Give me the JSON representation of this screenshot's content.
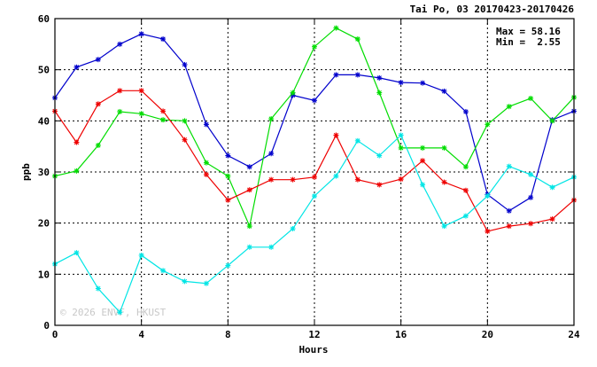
{
  "chart_data": {
    "type": "line",
    "title": "Tai Po, 03 20170423-20170426",
    "xlabel": "Hours",
    "ylabel": "ppb",
    "xlim": [
      0,
      24
    ],
    "ylim": [
      0,
      60
    ],
    "xticks": [
      0,
      4,
      8,
      12,
      16,
      20,
      24
    ],
    "yticks": [
      0,
      10,
      20,
      30,
      40,
      50,
      60
    ],
    "grid": true,
    "stats": {
      "max_label": "Max = 58.16",
      "min_label": "Min =  2.55"
    },
    "watermark": "© 2026 ENVF, HKUST",
    "series": [
      {
        "color": "#0000cc",
        "x": [
          0,
          1,
          2,
          3,
          4,
          5,
          6,
          7,
          8,
          9,
          10,
          11,
          12,
          13,
          14,
          15,
          16,
          17,
          18,
          19,
          20,
          21,
          22,
          23,
          24
        ],
        "y": [
          44.5,
          50.5,
          52.0,
          55.0,
          57.0,
          56.0,
          51.0,
          39.3,
          33.2,
          31.0,
          33.6,
          45.0,
          44.0,
          49.0,
          49.0,
          48.4,
          47.5,
          47.4,
          45.8,
          41.8,
          25.6,
          22.4,
          25.0,
          40.2,
          41.9
        ]
      },
      {
        "color": "#00dd00",
        "x": [
          0,
          1,
          2,
          3,
          4,
          5,
          6,
          7,
          8,
          9,
          10,
          11,
          12,
          13,
          14,
          15,
          16,
          17,
          18,
          19,
          20,
          21,
          22,
          23,
          24
        ],
        "y": [
          29.2,
          30.2,
          35.2,
          41.8,
          41.4,
          40.2,
          40.0,
          31.8,
          29.2,
          19.4,
          40.4,
          45.5,
          54.5,
          58.16,
          56.0,
          45.5,
          34.7,
          34.7,
          34.7,
          31.0,
          39.3,
          42.8,
          44.4,
          40.0,
          44.6
        ]
      },
      {
        "color": "#ee0000",
        "x": [
          0,
          1,
          2,
          3,
          4,
          5,
          6,
          7,
          8,
          9,
          10,
          11,
          12,
          13,
          14,
          15,
          16,
          17,
          18,
          19,
          20,
          21,
          22,
          23,
          24
        ],
        "y": [
          41.9,
          35.8,
          43.3,
          45.9,
          45.9,
          41.9,
          36.3,
          29.5,
          24.5,
          26.5,
          28.5,
          28.5,
          29.0,
          37.2,
          28.5,
          27.5,
          28.6,
          32.2,
          28.0,
          26.4,
          18.4,
          19.4,
          19.9,
          20.8,
          24.5
        ]
      },
      {
        "color": "#00e5e5",
        "x": [
          0,
          1,
          2,
          3,
          4,
          5,
          6,
          7,
          8,
          9,
          10,
          11,
          12,
          13,
          14,
          15,
          16,
          17,
          18,
          19,
          20,
          21,
          22,
          23,
          24
        ],
        "y": [
          12.0,
          14.2,
          7.2,
          2.55,
          13.7,
          10.7,
          8.6,
          8.2,
          11.7,
          15.3,
          15.3,
          18.9,
          25.3,
          29.2,
          36.1,
          33.2,
          37.2,
          27.5,
          19.4,
          21.4,
          25.3,
          31.1,
          29.5,
          27.0,
          29.0
        ]
      }
    ]
  }
}
